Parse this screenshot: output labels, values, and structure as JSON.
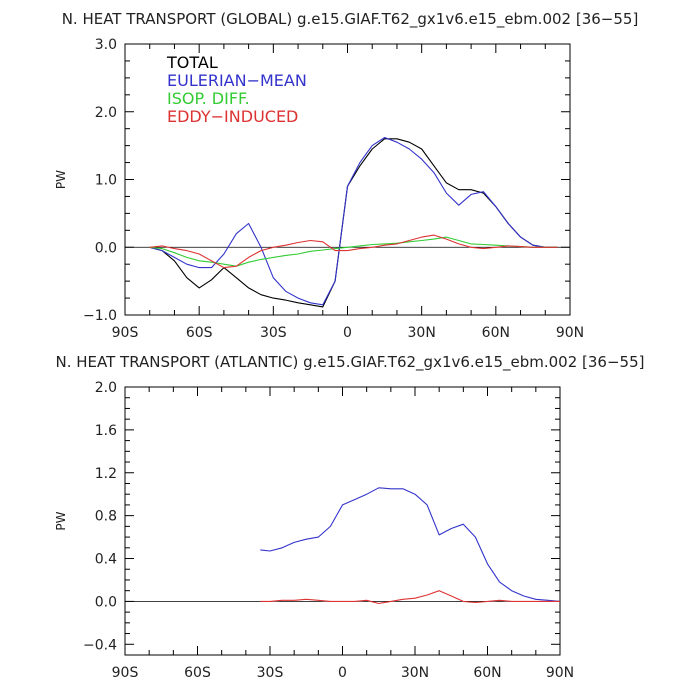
{
  "chart_data": [
    {
      "type": "line",
      "title": "N. HEAT TRANSPORT (GLOBAL) g.e15.GIAF.T62_gx1v6.e15_ebm.002 [36−55]",
      "ylabel": "PW",
      "xlim": [
        -90,
        90
      ],
      "ylim": [
        -1.0,
        3.0
      ],
      "x_ticks": [
        -90,
        -60,
        -30,
        0,
        30,
        60,
        90
      ],
      "x_tick_labels": [
        "90S",
        "60S",
        "30S",
        "0",
        "30N",
        "60N",
        "90N"
      ],
      "y_ticks": [
        -1.0,
        0.0,
        1.0,
        2.0,
        3.0
      ],
      "y_tick_labels": [
        "−1.0",
        "0.0",
        "1.0",
        "2.0",
        "3.0"
      ],
      "zero_line": true,
      "legend_position": "top-left",
      "series": [
        {
          "name": "TOTAL",
          "color": "#000000",
          "x": [
            -80,
            -75,
            -70,
            -65,
            -60,
            -55,
            -50,
            -45,
            -40,
            -35,
            -30,
            -25,
            -20,
            -15,
            -10,
            -5,
            0,
            5,
            10,
            15,
            20,
            25,
            30,
            35,
            40,
            45,
            50,
            55,
            60,
            65,
            70,
            75,
            80,
            85
          ],
          "y": [
            0,
            -0.05,
            -0.2,
            -0.45,
            -0.6,
            -0.48,
            -0.3,
            -0.45,
            -0.6,
            -0.7,
            -0.75,
            -0.78,
            -0.82,
            -0.85,
            -0.88,
            -0.5,
            0.9,
            1.2,
            1.45,
            1.6,
            1.6,
            1.55,
            1.45,
            1.2,
            0.95,
            0.85,
            0.85,
            0.8,
            0.6,
            0.35,
            0.15,
            0.03,
            0,
            0
          ]
        },
        {
          "name": "EULERIAN−MEAN",
          "color": "#3333cc",
          "x": [
            -80,
            -75,
            -70,
            -65,
            -60,
            -55,
            -50,
            -45,
            -40,
            -35,
            -30,
            -25,
            -20,
            -15,
            -10,
            -5,
            0,
            5,
            10,
            15,
            20,
            25,
            30,
            35,
            40,
            45,
            50,
            55,
            60,
            65,
            70,
            75,
            80,
            85
          ],
          "y": [
            0,
            -0.05,
            -0.15,
            -0.25,
            -0.3,
            -0.3,
            -0.1,
            0.2,
            0.35,
            0.0,
            -0.45,
            -0.65,
            -0.75,
            -0.82,
            -0.85,
            -0.5,
            0.9,
            1.25,
            1.5,
            1.62,
            1.55,
            1.45,
            1.3,
            1.1,
            0.8,
            0.62,
            0.78,
            0.82,
            0.6,
            0.35,
            0.15,
            0.03,
            0,
            0
          ]
        },
        {
          "name": "ISOP. DIFF.",
          "color": "#33cc33",
          "x": [
            -80,
            -75,
            -70,
            -65,
            -60,
            -55,
            -50,
            -45,
            -40,
            -35,
            -30,
            -25,
            -20,
            -15,
            -10,
            -5,
            0,
            5,
            10,
            15,
            20,
            25,
            30,
            35,
            40,
            45,
            50,
            55,
            60,
            65,
            70,
            75,
            80,
            85
          ],
          "y": [
            0,
            -0.02,
            -0.08,
            -0.15,
            -0.2,
            -0.22,
            -0.25,
            -0.28,
            -0.22,
            -0.18,
            -0.15,
            -0.12,
            -0.1,
            -0.06,
            -0.04,
            -0.02,
            0,
            0.02,
            0.04,
            0.05,
            0.06,
            0.08,
            0.1,
            0.12,
            0.15,
            0.1,
            0.05,
            0.04,
            0.03,
            0.02,
            0.01,
            0,
            0,
            0
          ]
        },
        {
          "name": "EDDY−INDUCED",
          "color": "#dd3333",
          "x": [
            -80,
            -75,
            -70,
            -65,
            -60,
            -55,
            -50,
            -45,
            -40,
            -35,
            -30,
            -25,
            -20,
            -15,
            -10,
            -5,
            0,
            5,
            10,
            15,
            20,
            25,
            30,
            35,
            40,
            45,
            50,
            55,
            60,
            65,
            70,
            75,
            80,
            85
          ],
          "y": [
            0,
            0.02,
            -0.02,
            -0.05,
            -0.1,
            -0.2,
            -0.3,
            -0.28,
            -0.15,
            -0.05,
            0.0,
            0.03,
            0.07,
            0.1,
            0.08,
            -0.05,
            -0.05,
            -0.02,
            0.0,
            0.03,
            0.05,
            0.1,
            0.15,
            0.18,
            0.12,
            0.05,
            0.0,
            -0.02,
            0.0,
            0.02,
            0.01,
            0,
            0,
            0
          ]
        }
      ]
    },
    {
      "type": "line",
      "title": "N. HEAT TRANSPORT (ATLANTIC) g.e15.GIAF.T62_gx1v6.e15_ebm.002 [36−55]",
      "ylabel": "PW",
      "xlim": [
        -90,
        90
      ],
      "ylim": [
        -0.5,
        2.0
      ],
      "x_ticks": [
        -90,
        -60,
        -30,
        0,
        30,
        60,
        90
      ],
      "x_tick_labels": [
        "90S",
        "60S",
        "30S",
        "0",
        "30N",
        "60N",
        "90N"
      ],
      "y_ticks": [
        -0.4,
        0.0,
        0.4,
        0.8,
        1.2,
        1.6,
        2.0
      ],
      "y_tick_labels": [
        "−0.4",
        "0.0",
        "0.4",
        "0.8",
        "1.2",
        "1.6",
        "2.0"
      ],
      "zero_line": true,
      "series": [
        {
          "name": "",
          "color": "#3333cc",
          "x": [
            -34,
            -30,
            -25,
            -20,
            -15,
            -10,
            -5,
            0,
            5,
            10,
            15,
            20,
            25,
            30,
            35,
            40,
            45,
            50,
            55,
            60,
            65,
            70,
            75,
            80,
            85,
            90
          ],
          "y": [
            0.48,
            0.47,
            0.5,
            0.55,
            0.58,
            0.6,
            0.7,
            0.9,
            0.95,
            1.0,
            1.06,
            1.05,
            1.05,
            1.0,
            0.9,
            0.62,
            0.68,
            0.72,
            0.6,
            0.35,
            0.18,
            0.1,
            0.05,
            0.02,
            0.01,
            0
          ]
        },
        {
          "name": "",
          "color": "#dd3333",
          "x": [
            -34,
            -30,
            -25,
            -20,
            -15,
            -10,
            -5,
            0,
            5,
            10,
            15,
            20,
            25,
            30,
            35,
            40,
            45,
            50,
            55,
            60,
            65,
            70,
            75,
            80,
            85,
            90
          ],
          "y": [
            0,
            0,
            0.01,
            0.01,
            0.02,
            0.01,
            0.0,
            0.0,
            0.0,
            0.01,
            -0.02,
            0.0,
            0.02,
            0.03,
            0.06,
            0.1,
            0.05,
            0.0,
            -0.01,
            0.0,
            0.01,
            0.0,
            0.0,
            0.0,
            0.0,
            0
          ]
        }
      ]
    }
  ]
}
